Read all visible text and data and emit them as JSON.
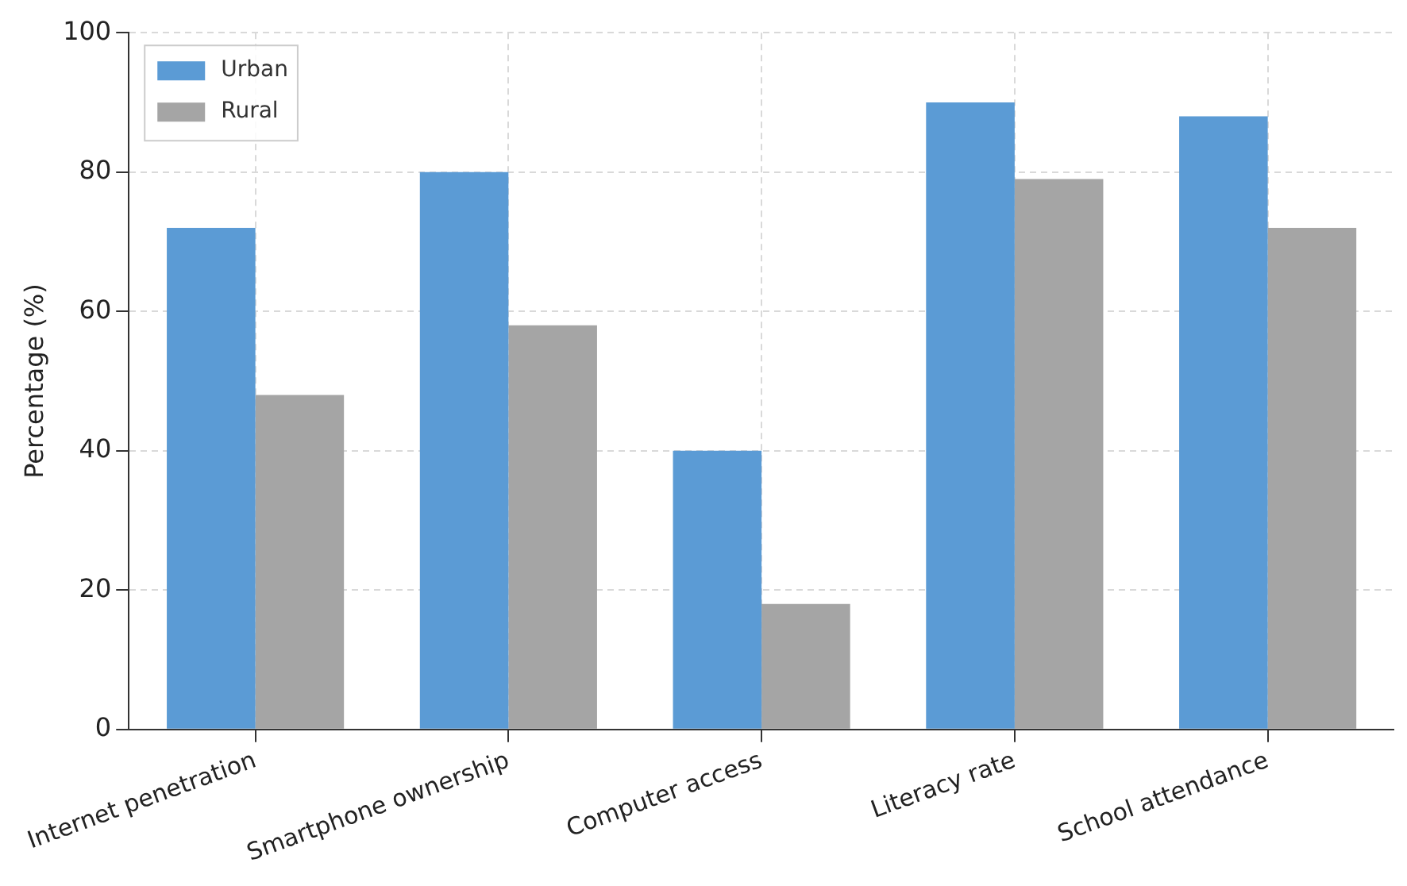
{
  "chart_data": {
    "type": "bar",
    "ylabel": "Percentage (%)",
    "categories": [
      "Internet penetration",
      "Smartphone ownership",
      "Computer access",
      "Literacy rate",
      "School attendance"
    ],
    "series": [
      {
        "name": "Urban",
        "color": "#5b9bd5",
        "values": [
          72,
          80,
          40,
          90,
          88
        ]
      },
      {
        "name": "Rural",
        "color": "#a5a5a5",
        "values": [
          48,
          58,
          18,
          79,
          72
        ]
      }
    ],
    "ylim": [
      0,
      100
    ],
    "yticks": [
      0,
      20,
      40,
      60,
      80,
      100
    ],
    "grid": true,
    "legend": "top left"
  }
}
